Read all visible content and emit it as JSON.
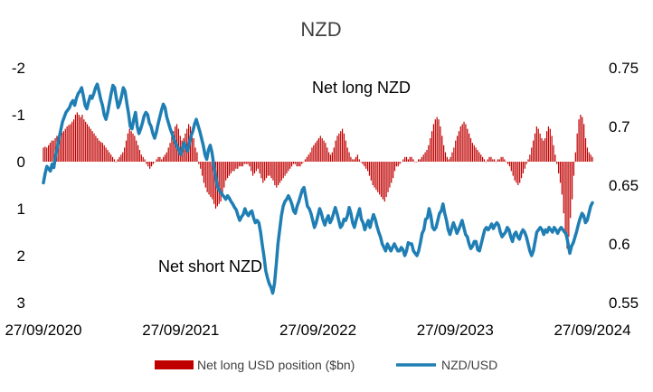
{
  "chart_data": {
    "type": "bar+line",
    "title": "NZD",
    "x_tick_labels": [
      "27/09/2020",
      "27/09/2021",
      "27/09/2022",
      "27/09/2023",
      "27/09/2024"
    ],
    "left_axis": {
      "reversed": true,
      "ylim": [
        -2,
        3
      ],
      "tick_labels": [
        "-2",
        "-1",
        "0",
        "1",
        "2",
        "3"
      ]
    },
    "right_axis": {
      "ylim": [
        0.55,
        0.75
      ],
      "tick_labels": [
        "0.75",
        "0.7",
        "0.65",
        "0.6",
        "0.55"
      ]
    },
    "annotations": [
      "Net long NZD",
      "Net short NZD"
    ],
    "grid": false,
    "legend_position": "bottom",
    "series": [
      {
        "name": "Net long USD position ($bn)",
        "type": "bar",
        "axis": "left",
        "color": "#c00000",
        "x_start": "2020-09-27",
        "step_days": 7,
        "values": [
          -0.3,
          -0.32,
          -0.3,
          -0.35,
          -0.4,
          -0.45,
          -0.45,
          -0.5,
          -0.55,
          -0.55,
          -0.6,
          -0.62,
          -0.65,
          -0.7,
          -0.75,
          -0.78,
          -0.8,
          -0.85,
          -0.9,
          -1.0,
          -1.05,
          -1.0,
          -0.95,
          -1.0,
          -0.9,
          -0.85,
          -0.8,
          -0.75,
          -0.7,
          -0.65,
          -0.6,
          -0.55,
          -0.5,
          -0.45,
          -0.42,
          -0.4,
          -0.35,
          -0.3,
          -0.25,
          -0.2,
          -0.15,
          -0.1,
          -0.05,
          0.0,
          -0.05,
          -0.1,
          -0.15,
          -0.2,
          -0.3,
          -0.45,
          -0.6,
          -0.7,
          -0.65,
          -0.6,
          -0.55,
          -0.45,
          -0.35,
          -0.25,
          -0.15,
          -0.1,
          -0.05,
          0.05,
          0.1,
          0.15,
          0.1,
          0.05,
          0.0,
          -0.05,
          -0.1,
          -0.1,
          -0.05,
          -0.1,
          -0.15,
          -0.2,
          -0.3,
          -0.4,
          -0.55,
          -0.65,
          -0.75,
          -0.8,
          -0.7,
          -0.55,
          -0.45,
          -0.5,
          -0.6,
          -0.7,
          -0.8,
          -0.75,
          -0.65,
          -0.5,
          -0.3,
          -0.2,
          0.05,
          0.15,
          0.3,
          0.45,
          0.55,
          0.65,
          0.7,
          0.75,
          0.8,
          0.9,
          1.0,
          0.95,
          0.9,
          0.85,
          0.7,
          0.55,
          0.4,
          0.35,
          0.3,
          0.25,
          0.2,
          0.2,
          0.15,
          0.15,
          0.1,
          0.1,
          0.1,
          0.05,
          0.05,
          0.05,
          0.1,
          0.2,
          0.3,
          0.25,
          0.2,
          0.15,
          0.25,
          0.35,
          0.45,
          0.4,
          0.35,
          0.3,
          0.3,
          0.35,
          0.4,
          0.5,
          0.55,
          0.5,
          0.45,
          0.4,
          0.35,
          0.3,
          0.25,
          0.2,
          0.15,
          0.1,
          0.05,
          0.05,
          0.1,
          0.1,
          0.1,
          0.05,
          0.0,
          -0.05,
          -0.1,
          -0.15,
          -0.2,
          -0.3,
          -0.35,
          -0.4,
          -0.45,
          -0.5,
          -0.55,
          -0.5,
          -0.45,
          -0.4,
          -0.3,
          -0.2,
          -0.15,
          -0.2,
          -0.3,
          -0.45,
          -0.55,
          -0.6,
          -0.65,
          -0.7,
          -0.6,
          -0.45,
          -0.3,
          -0.2,
          -0.1,
          -0.05,
          -0.05,
          -0.1,
          -0.15,
          -0.05,
          0.0,
          0.05,
          0.1,
          0.15,
          0.2,
          0.3,
          0.4,
          0.5,
          0.55,
          0.6,
          0.65,
          0.7,
          0.75,
          0.8,
          0.85,
          0.75,
          0.65,
          0.55,
          0.45,
          0.35,
          0.2,
          0.1,
          0.1,
          0.05,
          0.0,
          -0.05,
          -0.1,
          -0.1,
          -0.05,
          -0.1,
          -0.1,
          -0.05,
          0.0,
          0.0,
          -0.05,
          -0.05,
          -0.1,
          -0.15,
          -0.2,
          -0.25,
          -0.35,
          -0.5,
          -0.65,
          -0.8,
          -0.9,
          -0.95,
          -0.9,
          -0.75,
          -0.55,
          -0.35,
          -0.2,
          -0.1,
          -0.05,
          -0.1,
          -0.2,
          -0.3,
          -0.45,
          -0.55,
          -0.65,
          -0.75,
          -0.8,
          -0.85,
          -0.8,
          -0.7,
          -0.6,
          -0.5,
          -0.4,
          -0.35,
          -0.3,
          -0.25,
          -0.2,
          -0.15,
          -0.1,
          -0.05,
          0.0,
          -0.05,
          -0.1,
          -0.1,
          -0.05,
          -0.05,
          0.0,
          -0.05,
          -0.05,
          -0.1,
          -0.1,
          -0.05,
          0.0,
          0.05,
          0.1,
          0.2,
          0.3,
          0.4,
          0.45,
          0.5,
          0.45,
          0.35,
          0.25,
          0.15,
          0.05,
          -0.05,
          -0.15,
          -0.3,
          -0.45,
          -0.6,
          -0.75,
          -0.7,
          -0.6,
          -0.5,
          -0.45,
          -0.5,
          -0.65,
          -0.75,
          -0.7,
          -0.55,
          -0.35,
          -0.15,
          0.05,
          0.25,
          0.45,
          0.7,
          1.1,
          1.6,
          1.85,
          1.6,
          1.2,
          0.8,
          0.3,
          -0.2,
          -0.6,
          -0.9,
          -1.0,
          -0.95,
          -0.8,
          -0.5,
          -0.3,
          -0.2,
          -0.15,
          -0.1
        ]
      },
      {
        "name": "NZD/USD",
        "type": "line",
        "axis": "right",
        "color": "#1f7eb4",
        "x_start": "2020-09-27",
        "step_days": 7,
        "values": [
          0.652,
          0.66,
          0.666,
          0.664,
          0.662,
          0.668,
          0.665,
          0.675,
          0.682,
          0.69,
          0.697,
          0.704,
          0.708,
          0.712,
          0.714,
          0.716,
          0.72,
          0.722,
          0.718,
          0.724,
          0.728,
          0.73,
          0.733,
          0.726,
          0.718,
          0.715,
          0.721,
          0.726,
          0.724,
          0.728,
          0.733,
          0.736,
          0.73,
          0.723,
          0.718,
          0.71,
          0.706,
          0.712,
          0.72,
          0.728,
          0.735,
          0.733,
          0.724,
          0.716,
          0.72,
          0.726,
          0.733,
          0.73,
          0.72,
          0.711,
          0.7,
          0.698,
          0.706,
          0.712,
          0.7,
          0.694,
          0.698,
          0.703,
          0.709,
          0.712,
          0.71,
          0.703,
          0.7,
          0.694,
          0.69,
          0.695,
          0.702,
          0.708,
          0.714,
          0.719,
          0.716,
          0.708,
          0.703,
          0.698,
          0.694,
          0.69,
          0.686,
          0.683,
          0.68,
          0.676,
          0.682,
          0.686,
          0.682,
          0.679,
          0.686,
          0.692,
          0.696,
          0.702,
          0.706,
          0.701,
          0.696,
          0.69,
          0.684,
          0.676,
          0.672,
          0.68,
          0.684,
          0.678,
          0.668,
          0.659,
          0.65,
          0.646,
          0.644,
          0.642,
          0.64,
          0.638,
          0.641,
          0.639,
          0.636,
          0.634,
          0.631,
          0.629,
          0.624,
          0.62,
          0.623,
          0.625,
          0.63,
          0.626,
          0.624,
          0.627,
          0.628,
          0.622,
          0.618,
          0.62,
          0.618,
          0.61,
          0.599,
          0.589,
          0.577,
          0.571,
          0.566,
          0.563,
          0.558,
          0.566,
          0.582,
          0.6,
          0.612,
          0.624,
          0.632,
          0.636,
          0.638,
          0.641,
          0.638,
          0.634,
          0.628,
          0.626,
          0.632,
          0.636,
          0.641,
          0.646,
          0.648,
          0.64,
          0.632,
          0.63,
          0.626,
          0.62,
          0.614,
          0.618,
          0.624,
          0.63,
          0.626,
          0.62,
          0.616,
          0.621,
          0.624,
          0.618,
          0.621,
          0.626,
          0.631,
          0.626,
          0.62,
          0.614,
          0.616,
          0.621,
          0.62,
          0.624,
          0.631,
          0.626,
          0.618,
          0.614,
          0.62,
          0.625,
          0.63,
          0.621,
          0.618,
          0.612,
          0.616,
          0.62,
          0.614,
          0.62,
          0.625,
          0.621,
          0.615,
          0.61,
          0.606,
          0.6,
          0.597,
          0.594,
          0.6,
          0.597,
          0.594,
          0.597,
          0.6,
          0.597,
          0.594,
          0.594,
          0.597,
          0.595,
          0.59,
          0.594,
          0.601,
          0.6,
          0.6,
          0.594,
          0.592,
          0.59,
          0.594,
          0.601,
          0.609,
          0.612,
          0.621,
          0.622,
          0.63,
          0.624,
          0.614,
          0.612,
          0.614,
          0.62,
          0.626,
          0.628,
          0.634,
          0.626,
          0.62,
          0.612,
          0.608,
          0.613,
          0.618,
          0.614,
          0.609,
          0.612,
          0.616,
          0.62,
          0.614,
          0.608,
          0.606,
          0.6,
          0.596,
          0.598,
          0.602,
          0.602,
          0.595,
          0.594,
          0.6,
          0.606,
          0.612,
          0.614,
          0.612,
          0.614,
          0.617,
          0.613,
          0.616,
          0.618,
          0.616,
          0.61,
          0.606,
          0.608,
          0.61,
          0.614,
          0.612,
          0.606,
          0.602,
          0.608,
          0.61,
          0.606,
          0.604,
          0.609,
          0.612,
          0.61,
          0.606,
          0.6,
          0.594,
          0.59,
          0.594,
          0.602,
          0.61,
          0.612,
          0.614,
          0.612,
          0.608,
          0.612,
          0.61,
          0.614,
          0.612,
          0.61,
          0.614,
          0.612,
          0.609,
          0.612,
          0.614,
          0.612,
          0.61,
          0.608,
          0.6,
          0.592,
          0.598,
          0.601,
          0.606,
          0.611,
          0.617,
          0.622,
          0.626,
          0.624,
          0.618,
          0.62,
          0.626,
          0.632,
          0.635
        ]
      }
    ]
  }
}
